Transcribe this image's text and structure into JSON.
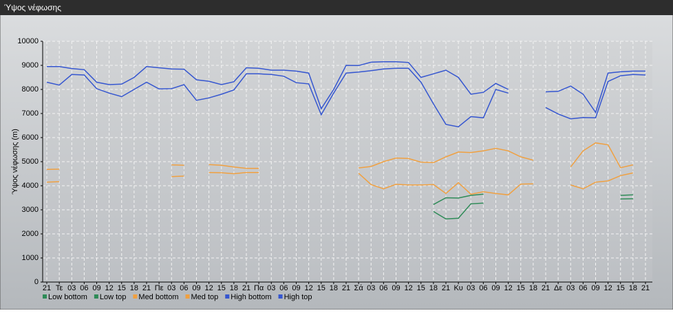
{
  "window_title": "Ύψος νέφωσης",
  "chart_data": {
    "type": "line",
    "y_label": "Ύψος νέφωσης (m)",
    "categories": [
      "21",
      "Τε",
      "03",
      "06",
      "09",
      "12",
      "15",
      "18",
      "21",
      "Πε",
      "03",
      "06",
      "09",
      "12",
      "15",
      "18",
      "21",
      "Πα",
      "03",
      "06",
      "09",
      "12",
      "15",
      "18",
      "21",
      "Σά",
      "03",
      "06",
      "09",
      "12",
      "15",
      "18",
      "21",
      "Κυ",
      "03",
      "06",
      "09",
      "12",
      "15",
      "18",
      "21",
      "Δε",
      "03",
      "06",
      "09",
      "12",
      "15",
      "18",
      "21"
    ],
    "ylim": [
      0,
      10000
    ],
    "yticks": [
      0,
      1000,
      2000,
      3000,
      4000,
      5000,
      6000,
      7000,
      8000,
      9000,
      10000
    ],
    "grid": true,
    "series": [
      {
        "name": "Low bottom",
        "color": "#2e8b57",
        "values": [
          null,
          null,
          null,
          null,
          null,
          null,
          null,
          null,
          null,
          null,
          null,
          null,
          null,
          null,
          null,
          null,
          null,
          null,
          null,
          null,
          null,
          null,
          null,
          null,
          null,
          null,
          null,
          null,
          null,
          null,
          null,
          2930,
          2620,
          2650,
          3250,
          3280,
          null,
          null,
          null,
          null,
          null,
          null,
          null,
          null,
          null,
          null,
          3450,
          3460,
          null
        ]
      },
      {
        "name": "Low top",
        "color": "#2e8b57",
        "values": [
          null,
          null,
          null,
          null,
          null,
          null,
          null,
          null,
          null,
          null,
          null,
          null,
          null,
          null,
          null,
          null,
          null,
          null,
          null,
          null,
          null,
          null,
          null,
          null,
          null,
          null,
          null,
          null,
          null,
          null,
          null,
          3220,
          3500,
          3490,
          3600,
          3650,
          null,
          null,
          null,
          null,
          null,
          null,
          null,
          null,
          null,
          null,
          3600,
          3620,
          null
        ]
      },
      {
        "name": "Med bottom",
        "color": "#f0a040",
        "values": [
          4150,
          4170,
          null,
          null,
          null,
          null,
          null,
          null,
          null,
          null,
          4380,
          4400,
          null,
          4550,
          4540,
          4500,
          4550,
          4550,
          null,
          null,
          null,
          null,
          null,
          null,
          null,
          4520,
          4050,
          3870,
          4060,
          4030,
          4030,
          4050,
          3680,
          4130,
          3650,
          3750,
          3680,
          3620,
          4070,
          4080,
          null,
          null,
          4030,
          3870,
          4150,
          4200,
          4420,
          4530,
          null
        ]
      },
      {
        "name": "Med top",
        "color": "#f0a040",
        "values": [
          4680,
          4690,
          null,
          null,
          null,
          null,
          null,
          null,
          null,
          null,
          4870,
          4850,
          null,
          4880,
          4850,
          4780,
          4720,
          4720,
          null,
          null,
          null,
          null,
          null,
          null,
          null,
          4740,
          4800,
          5000,
          5150,
          5130,
          4980,
          4960,
          5200,
          5400,
          5380,
          5450,
          5550,
          5450,
          5200,
          5060,
          null,
          null,
          4780,
          5450,
          5780,
          5700,
          4750,
          4870,
          null
        ]
      },
      {
        "name": "High bottom",
        "color": "#3556d0",
        "values": [
          8300,
          8180,
          8620,
          8600,
          8030,
          7850,
          7700,
          8000,
          8300,
          8020,
          8030,
          8200,
          7550,
          7650,
          7800,
          7980,
          8650,
          8650,
          8620,
          8550,
          8280,
          8230,
          6950,
          7850,
          8680,
          8720,
          8780,
          8850,
          8880,
          8880,
          8300,
          7400,
          6550,
          6450,
          6870,
          6820,
          8000,
          7850,
          null,
          null,
          7250,
          6980,
          6780,
          6830,
          6820,
          8330,
          8570,
          8620,
          8600
        ]
      },
      {
        "name": "High top",
        "color": "#3556d0",
        "values": [
          8950,
          8950,
          8870,
          8820,
          8300,
          8200,
          8220,
          8500,
          8950,
          8900,
          8850,
          8840,
          8400,
          8340,
          8200,
          8320,
          8900,
          8880,
          8800,
          8800,
          8760,
          8680,
          7200,
          8000,
          9000,
          8990,
          9130,
          9150,
          9150,
          9120,
          8500,
          8650,
          8800,
          8500,
          7800,
          7880,
          8250,
          8000,
          null,
          null,
          7900,
          7920,
          8140,
          7800,
          7050,
          8680,
          8730,
          8760,
          8760
        ]
      }
    ]
  }
}
